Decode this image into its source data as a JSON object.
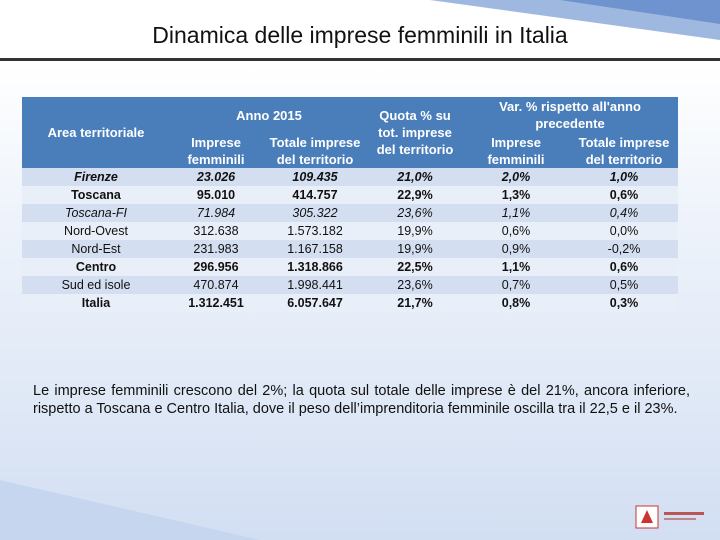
{
  "title": "Dinamica delle imprese femminili in Italia",
  "table": {
    "header": {
      "area": "Area territoriale",
      "year": "Anno 2015",
      "share": "Quota % su tot. imprese del territorio",
      "change": "Var. % rispetto all'anno precedente",
      "sub": [
        "Imprese femminili",
        "Totale imprese del territorio",
        "Imprese femminili",
        "Totale imprese del territorio"
      ]
    },
    "rows": [
      {
        "emphasis": "bold-italic",
        "cells": [
          "Firenze",
          "23.026",
          "109.435",
          "21,0%",
          "2,0%",
          "1,0%"
        ]
      },
      {
        "emphasis": "bold",
        "cells": [
          "Toscana",
          "95.010",
          "414.757",
          "22,9%",
          "1,3%",
          "0,6%"
        ]
      },
      {
        "emphasis": "italic",
        "cells": [
          "Toscana-FI",
          "71.984",
          "305.322",
          "23,6%",
          "1,1%",
          "0,4%"
        ]
      },
      {
        "emphasis": "normal",
        "cells": [
          "Nord-Ovest",
          "312.638",
          "1.573.182",
          "19,9%",
          "0,6%",
          "0,0%"
        ]
      },
      {
        "emphasis": "normal",
        "cells": [
          "Nord-Est",
          "231.983",
          "1.167.158",
          "19,9%",
          "0,9%",
          "-0,2%"
        ]
      },
      {
        "emphasis": "bold",
        "cells": [
          "Centro",
          "296.956",
          "1.318.866",
          "22,5%",
          "1,1%",
          "0,6%"
        ]
      },
      {
        "emphasis": "normal",
        "cells": [
          "Sud ed isole",
          "470.874",
          "1.998.441",
          "23,6%",
          "0,7%",
          "0,5%"
        ]
      },
      {
        "emphasis": "bold",
        "cells": [
          "Italia",
          "1.312.451",
          "6.057.647",
          "21,7%",
          "0,8%",
          "0,3%"
        ]
      }
    ]
  },
  "text": "Le imprese femminili crescono del 2%; la quota sul totale delle imprese è del 21%, ancora inferiore, rispetto a Toscana e Centro Italia, dove il peso dell’imprenditoria femminile oscilla tra il 22,5 e il 23%."
}
